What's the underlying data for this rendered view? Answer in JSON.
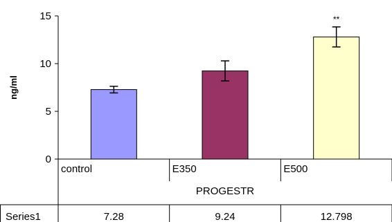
{
  "chart_data": {
    "type": "bar",
    "categories": [
      "control",
      "E350",
      "E500"
    ],
    "series": [
      {
        "name": "Series1",
        "values": [
          7.28,
          9.24,
          12.798
        ],
        "errors": [
          0.35,
          1.05,
          1.05
        ],
        "colors": [
          "#9999ff",
          "#993366",
          "#ffffcc"
        ]
      }
    ],
    "value_labels": [
      "7.28",
      "9.24",
      "12.798"
    ],
    "significance": [
      "",
      "",
      "**"
    ],
    "xlabel": "PROGESTR",
    "ylabel": "ng/ml",
    "ylim": [
      0,
      15
    ],
    "yticks": [
      0,
      5,
      10,
      15
    ],
    "grid": false,
    "data_table": true
  }
}
